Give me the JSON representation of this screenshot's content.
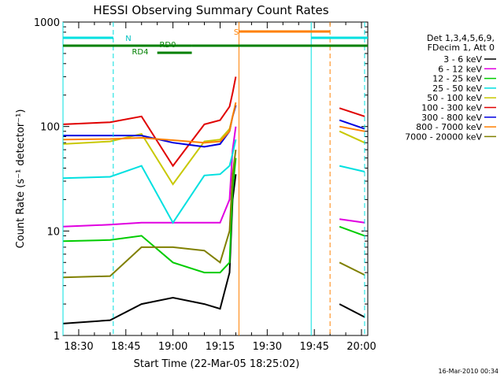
{
  "chart_data": {
    "type": "line",
    "title": "HESSI Observing Summary Count Rates",
    "xlabel": "Start Time (22-Mar-05 18:25:02)",
    "ylabel": "Count Rate (s⁻¹ detector⁻¹)",
    "ylog": true,
    "ylim": [
      1,
      1000
    ],
    "xlim": [
      "18:25",
      "20:02"
    ],
    "x_ticks": [
      "18:30",
      "18:45",
      "19:00",
      "19:15",
      "19:30",
      "19:45",
      "20:00"
    ],
    "y_ticks": [
      "1",
      "10",
      "100",
      "1000"
    ],
    "legend_header": [
      "Det 1,3,4,5,6,9,",
      "FDecim 1, Att 0"
    ],
    "legend_position": "right",
    "series": [
      {
        "name": "3 - 6 keV",
        "color": "#000000",
        "x": [
          "18:25",
          "18:40",
          "18:50",
          "19:00",
          "19:10",
          "19:15",
          "19:18",
          "19:19",
          "19:20"
        ],
        "y": [
          1.3,
          1.4,
          2.0,
          2.3,
          2.0,
          1.8,
          4,
          20,
          35
        ]
      },
      {
        "name": "6 - 12 keV",
        "color": "#e000e0",
        "x": [
          "18:25",
          "18:40",
          "18:50",
          "19:00",
          "19:10",
          "19:15",
          "19:18",
          "19:19",
          "19:20"
        ],
        "y": [
          11,
          11.5,
          12,
          12,
          12,
          12,
          20,
          60,
          100
        ]
      },
      {
        "name": "12 - 25 keV",
        "color": "#00cc00",
        "x": [
          "18:25",
          "18:40",
          "18:50",
          "19:00",
          "19:10",
          "19:15",
          "19:18",
          "19:19",
          "19:20"
        ],
        "y": [
          8,
          8.2,
          9,
          5,
          4,
          4,
          5,
          25,
          50
        ]
      },
      {
        "name": "25 - 50 keV",
        "color": "#00e0e0",
        "x": [
          "18:25",
          "18:40",
          "18:50",
          "19:00",
          "19:10",
          "19:15",
          "19:18",
          "19:19",
          "19:20"
        ],
        "y": [
          32,
          33,
          42,
          12,
          34,
          35,
          42,
          55,
          75
        ]
      },
      {
        "name": "50 - 100 keV",
        "color": "#c8c800",
        "x": [
          "18:25",
          "18:40",
          "18:50",
          "19:00",
          "19:10",
          "19:15",
          "19:18",
          "19:19",
          "19:20"
        ],
        "y": [
          68,
          72,
          85,
          28,
          72,
          75,
          95,
          125,
          160
        ]
      },
      {
        "name": "100 - 300 keV",
        "color": "#e00000",
        "x": [
          "18:25",
          "18:40",
          "18:50",
          "19:00",
          "19:10",
          "19:15",
          "19:18",
          "19:19",
          "19:20"
        ],
        "y": [
          105,
          110,
          125,
          42,
          105,
          115,
          155,
          210,
          300
        ]
      },
      {
        "name": "300 - 800 keV",
        "color": "#0000e0",
        "x": [
          "18:25",
          "18:40",
          "18:50",
          "19:00",
          "19:10",
          "19:15",
          "19:18",
          "19:19",
          "19:20"
        ],
        "y": [
          82,
          82,
          82,
          70,
          64,
          68,
          90,
          125,
          160
        ]
      },
      {
        "name": "800 - 7000 keV",
        "color": "#ff8000",
        "x": [
          "18:25",
          "18:40",
          "18:50",
          "19:00",
          "19:10",
          "19:15",
          "19:18",
          "19:19",
          "19:20"
        ],
        "y": [
          75,
          76,
          78,
          74,
          70,
          72,
          90,
          125,
          170
        ]
      },
      {
        "name": "7000 - 20000 keV",
        "color": "#808000",
        "x": [
          "18:25",
          "18:40",
          "18:50",
          "19:00",
          "19:10",
          "19:15",
          "19:18",
          "19:19",
          "19:20"
        ],
        "y": [
          3.6,
          3.7,
          7,
          7,
          6.5,
          5,
          10,
          35,
          60
        ]
      }
    ],
    "series_after_gap": [
      {
        "name": "100 - 300 keV",
        "x": [
          "19:53",
          "20:01"
        ],
        "y": [
          150,
          125
        ]
      },
      {
        "name": "300 - 800 keV",
        "x": [
          "19:53",
          "20:01"
        ],
        "y": [
          115,
          95
        ]
      },
      {
        "name": "800 - 7000 keV",
        "x": [
          "19:53",
          "20:01"
        ],
        "y": [
          100,
          90
        ]
      },
      {
        "name": "50 - 100 keV",
        "x": [
          "19:53",
          "20:01"
        ],
        "y": [
          90,
          70
        ]
      },
      {
        "name": "25 - 50 keV",
        "x": [
          "19:53",
          "20:01"
        ],
        "y": [
          42,
          37
        ]
      },
      {
        "name": "6 - 12 keV",
        "x": [
          "19:53",
          "20:01"
        ],
        "y": [
          13,
          12
        ]
      },
      {
        "name": "12 - 25 keV",
        "x": [
          "19:53",
          "20:01"
        ],
        "y": [
          11,
          9
        ]
      },
      {
        "name": "7000 - 20000 keV",
        "x": [
          "19:53",
          "20:01"
        ],
        "y": [
          5,
          3.8
        ]
      },
      {
        "name": "3 - 6 keV",
        "x": [
          "19:53",
          "20:01"
        ],
        "y": [
          2.0,
          1.5
        ]
      }
    ],
    "annotations": {
      "night_label": "N",
      "saa_label": "S",
      "rd0_label": "RD0",
      "rd4_label": "RD4",
      "timestamp": "16-Mar-2010 00:34"
    }
  }
}
